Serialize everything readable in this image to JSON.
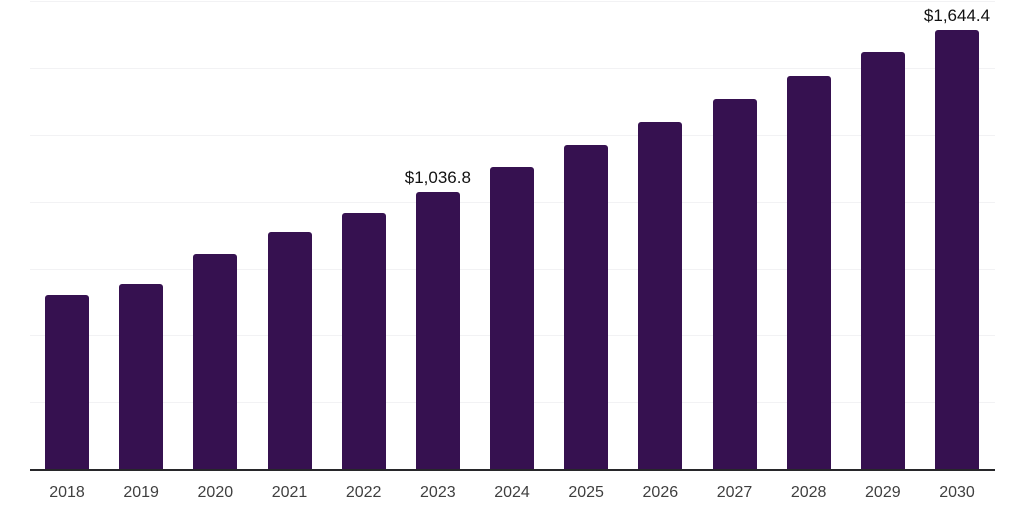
{
  "chart_data": {
    "type": "bar",
    "title": "",
    "xlabel": "",
    "ylabel": "",
    "categories": [
      "2018",
      "2019",
      "2020",
      "2021",
      "2022",
      "2023",
      "2024",
      "2025",
      "2026",
      "2027",
      "2028",
      "2029",
      "2030"
    ],
    "values": [
      653.0,
      691.4,
      806.0,
      885.7,
      956.7,
      1036.8,
      1129.6,
      1210.8,
      1297.8,
      1385.3,
      1472.4,
      1561.0,
      1644.4
    ],
    "value_labels": [
      {
        "category": "2023",
        "index": 5,
        "text": "$1,036.8"
      },
      {
        "category": "2030",
        "index": 12,
        "text": "$1,644.4"
      }
    ],
    "ylim": [
      0,
      1750
    ],
    "gridline_step": 250,
    "grid": "horizontal-light",
    "legend": "none",
    "colors": {
      "bar": "#361150",
      "axis_line": "#27272a",
      "gridline": "#f2f2f4",
      "tick_label": "#3f3f3f",
      "value_label": "#111111",
      "background": "#ffffff"
    }
  }
}
